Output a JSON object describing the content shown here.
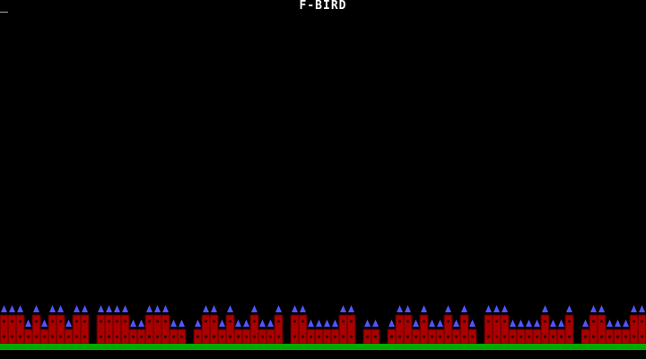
{
  "game": {
    "title": "F-BIRD"
  },
  "colors": {
    "background": "#000000",
    "building": "#aa0000",
    "building_edge": "#550000",
    "window": "#330000",
    "roof": "#5555ff",
    "ground": "#00aa00",
    "title": "#ffffff"
  },
  "icons": {
    "cursor": "text-cursor-underscore",
    "roof": "triangle-roof"
  }
}
